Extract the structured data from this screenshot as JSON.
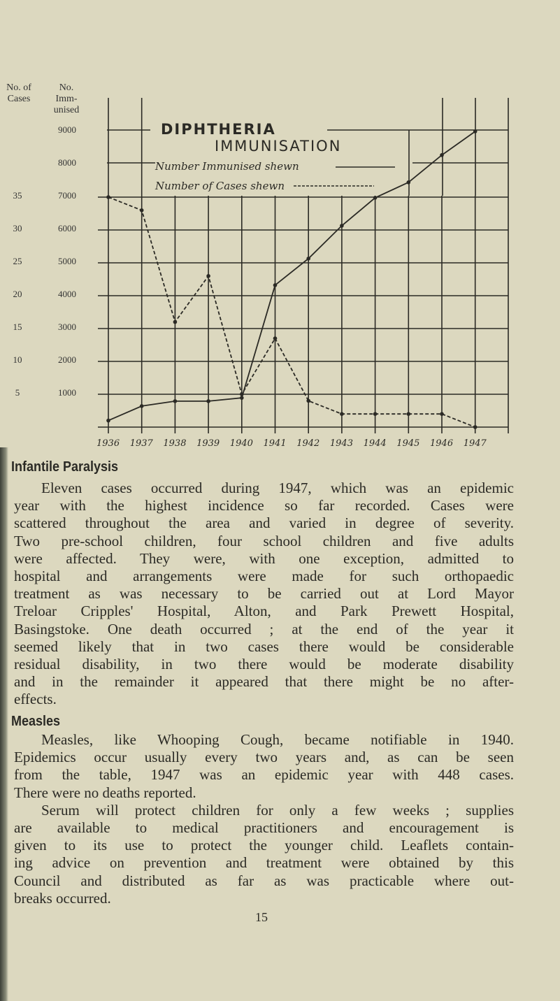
{
  "axes": {
    "left_label": "No. of Cases",
    "right_label": "No. Imm-unised",
    "left_label_lines": [
      "No. of",
      "Cases"
    ],
    "right_label_lines": [
      "No.",
      "Imm-",
      "unised"
    ],
    "cases_ticks": [
      "35",
      "30",
      "25",
      "20",
      "15",
      "10",
      "5"
    ],
    "immunised_ticks": [
      "9000",
      "8000",
      "7000",
      "6000",
      "5000",
      "4000",
      "3000",
      "2000",
      "1000"
    ]
  },
  "chart_data": {
    "type": "line",
    "title": "DIPHTHERIA IMMUNISATION",
    "title_lines": [
      "DIPHTHERIA",
      "IMMUNISATION"
    ],
    "legend": [
      "Number Immunised shewn",
      "Number of Cases shewn"
    ],
    "x": [
      "1936",
      "1937",
      "1938",
      "1939",
      "1940",
      "1941",
      "1942",
      "1943",
      "1944",
      "1945",
      "1946",
      "1947"
    ],
    "series": [
      {
        "name": "Number Immunised shewn",
        "axis": "right",
        "style": "solid",
        "values": [
          200,
          640,
          790,
          790,
          890,
          4320,
          5130,
          6130,
          6980,
          7450,
          8280,
          9000
        ]
      },
      {
        "name": "Number of Cases shewn",
        "axis": "left",
        "style": "dashed",
        "values": [
          35,
          33,
          16,
          23,
          5,
          13.5,
          4,
          2,
          2,
          2,
          2,
          0
        ]
      }
    ],
    "ylim_cases": [
      0,
      45
    ],
    "ylim_immunised": [
      0,
      9000
    ],
    "grid": true
  },
  "sections": [
    {
      "heading": "Infantile Paralysis",
      "lines": [
        "Eleven cases occurred during 1947, which was an epidemic",
        "year with the highest incidence so far recorded.  Cases were",
        "scattered throughout the area and varied in degree of severity.",
        "Two pre-school children, four school children and five adults",
        "were affected.  They were, with one exception, admitted to",
        "hospital and arrangements were made  for  such orthopaedic",
        "treatment as was necessary to be carried out at Lord Mayor",
        "Treloar Cripples' Hospital, Alton, and Park Prewett Hospital,",
        "Basingstoke.  One death occurred ; at the end of the year it",
        "seemed  likely that in two cases there would  be considerable",
        "residual disability, in two there would be moderate disability",
        "and in the remainder it appeared that there might be no after-",
        "effects."
      ]
    },
    {
      "heading": "Measles",
      "lines": [
        "Measles, like Whooping Cough, became notifiable in 1940.",
        "Epidemics occur usually every two years and, as can be seen",
        "from the table, 1947 was an epidemic year with 448 cases.",
        "There were no deaths reported.",
        "Serum will protect children for only a few weeks ; supplies",
        "are available to medical practitioners and encouragement  is",
        "given to its use to protect the younger child.  Leaflets contain-",
        "ing advice on prevention and treatment were obtained by this",
        "Council and distributed as far as was practicable where out-",
        "breaks occurred."
      ]
    }
  ],
  "page_number": "15"
}
